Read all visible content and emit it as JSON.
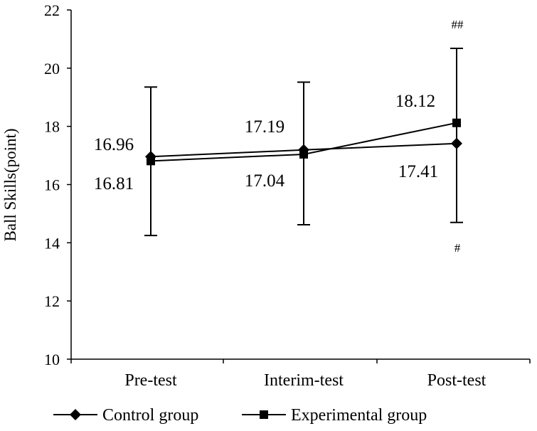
{
  "chart_data": {
    "type": "line",
    "title": "",
    "xlabel": "",
    "ylabel": "Ball Skills(point)",
    "ylim": [
      10,
      22
    ],
    "yticks": [
      10,
      12,
      14,
      16,
      18,
      20,
      22
    ],
    "categories": [
      "Pre-test",
      "Interim-test",
      "Post-test"
    ],
    "grid": false,
    "legend_position": "bottom",
    "series": [
      {
        "name": "Control group",
        "marker": "diamond",
        "values": [
          16.96,
          17.19,
          17.41
        ],
        "labels": [
          "16.96",
          "17.19",
          "17.41"
        ],
        "error_low": [
          14.25,
          14.62,
          14.7
        ],
        "error_high": [
          19.35,
          19.52,
          20.68
        ],
        "significance": [
          "",
          "",
          "#"
        ]
      },
      {
        "name": "Experimental group",
        "marker": "square",
        "values": [
          16.81,
          17.04,
          18.12
        ],
        "labels": [
          "16.81",
          "17.04",
          "18.12"
        ],
        "error_low": [
          14.25,
          14.62,
          14.7
        ],
        "error_high": [
          19.35,
          19.52,
          20.68
        ],
        "significance": [
          "",
          "",
          "##"
        ]
      }
    ]
  }
}
